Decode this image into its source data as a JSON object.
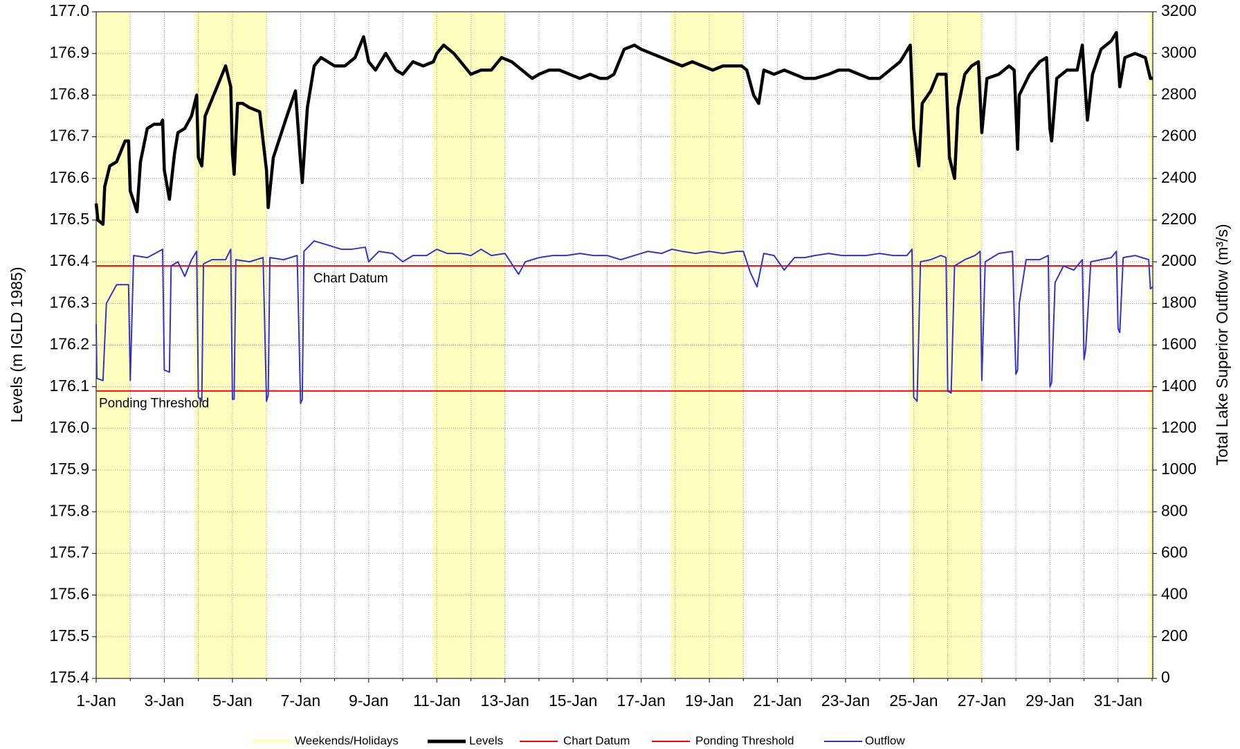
{
  "chart_data": {
    "type": "line",
    "y_label": "Levels (m IGLD 1985)",
    "y2_label": "Total Lake Superior Outflow (m³/s)",
    "xlim": [
      1,
      32.02
    ],
    "xticks": [
      {
        "value": 1,
        "label": "1-Jan"
      },
      {
        "value": 3,
        "label": "3-Jan"
      },
      {
        "value": 5,
        "label": "5-Jan"
      },
      {
        "value": 7,
        "label": "7-Jan"
      },
      {
        "value": 9,
        "label": "9-Jan"
      },
      {
        "value": 11,
        "label": "11-Jan"
      },
      {
        "value": 13,
        "label": "13-Jan"
      },
      {
        "value": 15,
        "label": "15-Jan"
      },
      {
        "value": 17,
        "label": "17-Jan"
      },
      {
        "value": 19,
        "label": "19-Jan"
      },
      {
        "value": 21,
        "label": "21-Jan"
      },
      {
        "value": 23,
        "label": "23-Jan"
      },
      {
        "value": 25,
        "label": "25-Jan"
      },
      {
        "value": 27,
        "label": "27-Jan"
      },
      {
        "value": 29,
        "label": "29-Jan"
      },
      {
        "value": 31,
        "label": "31-Jan"
      }
    ],
    "x_minor_ticks": [
      2,
      4,
      6,
      8,
      10,
      12,
      14,
      16,
      18,
      20,
      22,
      24,
      26,
      28,
      30,
      32
    ],
    "ylim": [
      175.4,
      177.0
    ],
    "yticks": [
      {
        "value": 175.4,
        "label": "175.4"
      },
      {
        "value": 175.5,
        "label": "175.5"
      },
      {
        "value": 175.6,
        "label": "175.6"
      },
      {
        "value": 175.7,
        "label": "175.7"
      },
      {
        "value": 175.8,
        "label": "175.8"
      },
      {
        "value": 175.9,
        "label": "175.9"
      },
      {
        "value": 176.0,
        "label": "176.0"
      },
      {
        "value": 176.1,
        "label": "176.1"
      },
      {
        "value": 176.2,
        "label": "176.2"
      },
      {
        "value": 176.3,
        "label": "176.3"
      },
      {
        "value": 176.4,
        "label": "176.4"
      },
      {
        "value": 176.5,
        "label": "176.5"
      },
      {
        "value": 176.6,
        "label": "176.6"
      },
      {
        "value": 176.7,
        "label": "176.7"
      },
      {
        "value": 176.8,
        "label": "176.8"
      },
      {
        "value": 176.9,
        "label": "176.9"
      },
      {
        "value": 177.0,
        "label": "177.0"
      }
    ],
    "y2lim": [
      0,
      3200
    ],
    "y2ticks": [
      0,
      200,
      400,
      600,
      800,
      1000,
      1200,
      1400,
      1600,
      1800,
      2000,
      2200,
      2400,
      2600,
      2800,
      3000,
      3200
    ],
    "grid": true,
    "shaded_regions": {
      "name": "Weekends/Holidays",
      "color": "#ffffc0",
      "spans": [
        [
          1,
          2
        ],
        [
          3.88,
          6
        ],
        [
          10.88,
          13
        ],
        [
          17.88,
          20
        ],
        [
          24.88,
          27
        ],
        [
          31.88,
          32.02
        ]
      ]
    },
    "hlines": [
      {
        "name": "Chart Datum",
        "value": 176.39,
        "color": "#ff0000"
      },
      {
        "name": "Ponding Threshold",
        "value": 176.09,
        "color": "#ff0000"
      }
    ],
    "series": [
      {
        "name": "Levels",
        "color": "#000000",
        "x": [
          1.0,
          1.05,
          1.2,
          1.25,
          1.4,
          1.6,
          1.75,
          1.85,
          1.95,
          2.0,
          2.2,
          2.3,
          2.5,
          2.7,
          2.9,
          2.95,
          3.0,
          3.15,
          3.3,
          3.4,
          3.6,
          3.8,
          3.95,
          4.0,
          4.1,
          4.2,
          4.4,
          4.6,
          4.8,
          4.95,
          5.0,
          5.05,
          5.15,
          5.3,
          5.5,
          5.8,
          6.0,
          6.05,
          6.2,
          6.4,
          6.6,
          6.85,
          7.0,
          7.05,
          7.2,
          7.4,
          7.6,
          7.8,
          8.0,
          8.3,
          8.6,
          8.85,
          9.0,
          9.2,
          9.5,
          9.8,
          10.0,
          10.3,
          10.6,
          10.9,
          11.0,
          11.2,
          11.5,
          11.8,
          12.0,
          12.3,
          12.6,
          12.9,
          13.2,
          13.5,
          13.8,
          14.0,
          14.3,
          14.6,
          14.9,
          15.2,
          15.5,
          15.8,
          16.0,
          16.2,
          16.5,
          16.8,
          17.0,
          17.3,
          17.6,
          17.9,
          18.2,
          18.5,
          18.8,
          19.1,
          19.4,
          19.7,
          19.95,
          20.1,
          20.3,
          20.45,
          20.6,
          20.9,
          21.2,
          21.5,
          21.8,
          22.1,
          22.5,
          22.8,
          23.1,
          23.4,
          23.7,
          24.0,
          24.3,
          24.6,
          24.9,
          25.0,
          25.15,
          25.25,
          25.5,
          25.7,
          25.95,
          26.05,
          26.2,
          26.3,
          26.5,
          26.7,
          26.9,
          27.0,
          27.15,
          27.5,
          27.8,
          27.95,
          28.05,
          28.1,
          28.4,
          28.7,
          28.9,
          29.0,
          29.05,
          29.2,
          29.5,
          29.8,
          29.95,
          30.1,
          30.25,
          30.5,
          30.8,
          30.95,
          31.05,
          31.2,
          31.5,
          31.8,
          31.95,
          32.02
        ],
        "values": [
          176.54,
          176.5,
          176.49,
          176.58,
          176.63,
          176.64,
          176.67,
          176.69,
          176.69,
          176.57,
          176.52,
          176.64,
          176.72,
          176.73,
          176.73,
          176.74,
          176.62,
          176.55,
          176.66,
          176.71,
          176.72,
          176.75,
          176.8,
          176.65,
          176.63,
          176.75,
          176.79,
          176.83,
          176.87,
          176.82,
          176.66,
          176.61,
          176.78,
          176.78,
          176.77,
          176.76,
          176.62,
          176.53,
          176.65,
          176.7,
          176.75,
          176.81,
          176.64,
          176.59,
          176.77,
          176.87,
          176.89,
          176.88,
          176.87,
          176.87,
          176.89,
          176.94,
          176.88,
          176.86,
          176.9,
          176.86,
          176.85,
          176.88,
          176.87,
          176.88,
          176.9,
          176.92,
          176.9,
          176.87,
          176.85,
          176.86,
          176.86,
          176.89,
          176.88,
          176.86,
          176.84,
          176.85,
          176.86,
          176.86,
          176.85,
          176.84,
          176.85,
          176.84,
          176.84,
          176.85,
          176.91,
          176.92,
          176.91,
          176.9,
          176.89,
          176.88,
          176.87,
          176.88,
          176.87,
          176.86,
          176.87,
          176.87,
          176.87,
          176.86,
          176.8,
          176.78,
          176.86,
          176.85,
          176.86,
          176.85,
          176.84,
          176.84,
          176.85,
          176.86,
          176.86,
          176.85,
          176.84,
          176.84,
          176.86,
          176.88,
          176.92,
          176.72,
          176.63,
          176.78,
          176.81,
          176.85,
          176.85,
          176.65,
          176.6,
          176.77,
          176.85,
          176.87,
          176.88,
          176.71,
          176.84,
          176.85,
          176.87,
          176.86,
          176.67,
          176.8,
          176.85,
          176.88,
          176.89,
          176.72,
          176.69,
          176.84,
          176.86,
          176.86,
          176.92,
          176.74,
          176.85,
          176.91,
          176.93,
          176.95,
          176.82,
          176.89,
          176.9,
          176.89,
          176.84,
          176.84
        ]
      },
      {
        "name": "Outflow",
        "color": "#3333cc",
        "axis": "y2",
        "x": [
          1.0,
          1.02,
          1.2,
          1.3,
          1.6,
          1.95,
          2.0,
          2.1,
          2.5,
          2.95,
          3.0,
          3.15,
          3.2,
          3.4,
          3.6,
          3.8,
          3.95,
          4.0,
          4.1,
          4.15,
          4.4,
          4.8,
          4.95,
          5.0,
          5.05,
          5.1,
          5.5,
          5.9,
          6.0,
          6.05,
          6.1,
          6.5,
          6.9,
          7.0,
          7.05,
          7.1,
          7.4,
          7.8,
          8.2,
          8.5,
          8.9,
          9.0,
          9.3,
          9.7,
          10.0,
          10.3,
          10.7,
          11.0,
          11.3,
          11.7,
          12.0,
          12.3,
          12.6,
          13.0,
          13.2,
          13.4,
          13.6,
          14.0,
          14.4,
          14.8,
          15.2,
          15.6,
          16.0,
          16.4,
          16.8,
          17.2,
          17.6,
          17.9,
          18.2,
          18.6,
          19.0,
          19.4,
          19.8,
          20.0,
          20.2,
          20.4,
          20.6,
          20.9,
          21.2,
          21.5,
          21.8,
          22.1,
          22.5,
          22.9,
          23.3,
          23.6,
          24.0,
          24.4,
          24.8,
          24.95,
          25.0,
          25.1,
          25.2,
          25.5,
          25.8,
          25.95,
          26.0,
          26.1,
          26.2,
          26.5,
          26.8,
          26.95,
          27.0,
          27.1,
          27.5,
          27.9,
          28.0,
          28.05,
          28.1,
          28.3,
          28.7,
          28.95,
          29.0,
          29.05,
          29.15,
          29.4,
          29.7,
          29.95,
          30.0,
          30.05,
          30.2,
          30.5,
          30.8,
          30.95,
          31.0,
          31.05,
          31.15,
          31.5,
          31.9,
          31.95,
          32.02
        ],
        "values": [
          1700,
          1440,
          1430,
          1800,
          1890,
          1890,
          1430,
          2030,
          2020,
          2060,
          1480,
          1470,
          1980,
          2000,
          1930,
          2010,
          2050,
          1350,
          1330,
          1990,
          2010,
          2010,
          2060,
          1340,
          1340,
          2010,
          2000,
          2020,
          1330,
          1360,
          2020,
          2010,
          2030,
          1320,
          1340,
          2050,
          2100,
          2080,
          2060,
          2060,
          2070,
          2000,
          2050,
          2040,
          2000,
          2030,
          2030,
          2060,
          2040,
          2040,
          2030,
          2060,
          2030,
          2040,
          1990,
          1940,
          2000,
          2020,
          2030,
          2030,
          2040,
          2030,
          2030,
          2010,
          2030,
          2050,
          2040,
          2060,
          2050,
          2040,
          2050,
          2040,
          2050,
          2050,
          1950,
          1880,
          2040,
          2030,
          1960,
          2020,
          2020,
          2030,
          2040,
          2030,
          2030,
          2030,
          2040,
          2030,
          2030,
          2060,
          1350,
          1330,
          2000,
          2010,
          2030,
          2020,
          1380,
          1370,
          1980,
          2010,
          2030,
          2050,
          1430,
          2000,
          2040,
          2050,
          1460,
          1480,
          1800,
          2010,
          2010,
          2030,
          1400,
          1420,
          1900,
          1980,
          1960,
          2010,
          1530,
          1580,
          2000,
          2010,
          2020,
          2050,
          1680,
          1660,
          2020,
          2030,
          2010,
          1870,
          1880
        ]
      }
    ]
  }
}
